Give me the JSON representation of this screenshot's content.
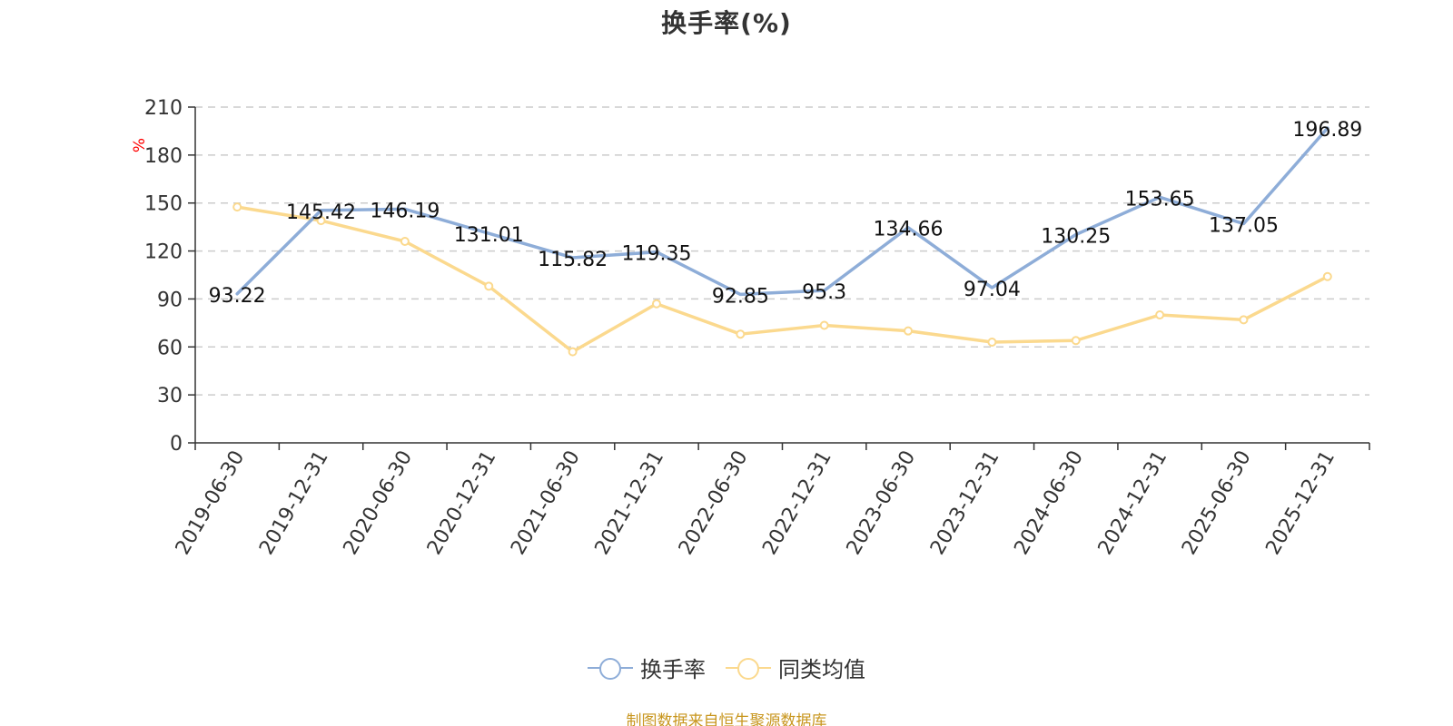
{
  "chart_data": {
    "type": "line",
    "title": "换手率(%)",
    "ylabel": "%",
    "xlabel": "",
    "ylim": [
      0,
      210
    ],
    "yticks": [
      0,
      30,
      60,
      90,
      120,
      150,
      180,
      210
    ],
    "categories": [
      "2019-06-30",
      "2019-12-31",
      "2020-06-30",
      "2020-12-31",
      "2021-06-30",
      "2021-12-31",
      "2022-06-30",
      "2022-12-31",
      "2023-06-30",
      "2023-12-31",
      "2024-06-30",
      "2024-12-31",
      "2025-06-30",
      "2025-12-31"
    ],
    "series": [
      {
        "name": "换手率",
        "color": "#8eadd8",
        "values": [
          93.22,
          145.42,
          146.19,
          131.01,
          115.82,
          119.35,
          92.85,
          95.3,
          134.66,
          97.04,
          130.25,
          153.65,
          137.05,
          196.89
        ],
        "labels": [
          "93.22",
          "145.42",
          "146.19",
          "131.01",
          "115.82",
          "119.35",
          "92.85",
          "95.3",
          "134.66",
          "97.04",
          "130.25",
          "153.65",
          "137.05",
          "196.89"
        ]
      },
      {
        "name": "同类均值",
        "color": "#fbd98e",
        "values": [
          147.5,
          139.0,
          126.0,
          98.0,
          57.0,
          87.0,
          68.0,
          73.5,
          70.0,
          63.0,
          64.0,
          80.0,
          77.0,
          104.0
        ]
      }
    ],
    "grid": true,
    "legend": "bottom-center"
  },
  "source_text": "制图数据来自恒生聚源数据库",
  "colors": {
    "axis": "#333333",
    "grid": "#cccccc",
    "ylabel": "#ff0000",
    "source": "#c8961e"
  }
}
